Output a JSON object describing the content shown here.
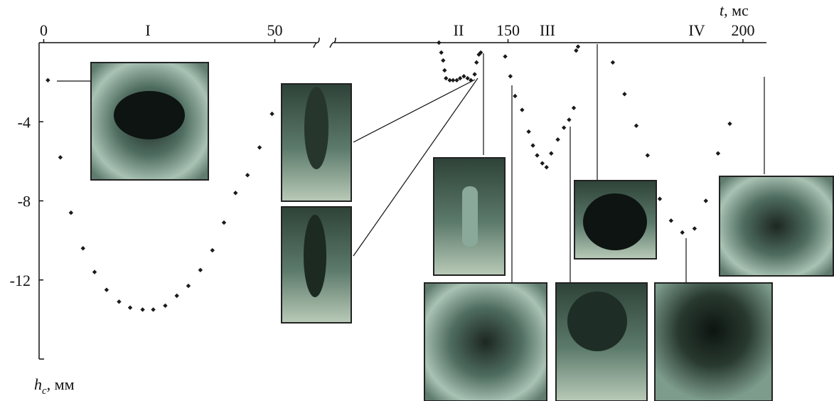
{
  "chart_data": {
    "type": "scatter",
    "x_label": {
      "symbol": "t",
      "unit": ", мс"
    },
    "y_label": {
      "symbol": "h",
      "subscript": "c",
      "unit": ", мм"
    },
    "phase_labels": [
      "I",
      "II",
      "III",
      "IV"
    ],
    "xlim": [
      -1,
      205
    ],
    "x_break": [
      59,
      113
    ],
    "xticks": [
      0,
      50,
      150,
      200
    ],
    "ylim": [
      -16,
      0
    ],
    "yticks": [
      -12,
      -8,
      -4
    ],
    "color": "#1a1a1a",
    "x": [
      0.9,
      3.6,
      5.9,
      8.5,
      11,
      13.6,
      16.3,
      18.7,
      21.4,
      23.7,
      26.3,
      28.8,
      31.3,
      33.9,
      36.5,
      39,
      41.5,
      44.1,
      46.7,
      49.4,
      135.3,
      135.8,
      136.2,
      136.5,
      136.8,
      137.6,
      138.3,
      139.1,
      139.8,
      140.6,
      141.4,
      142.1,
      142.9,
      143.3,
      143.8,
      144.2,
      149.4,
      150.5,
      151.5,
      153,
      154.4,
      155.3,
      156.2,
      157.3,
      158.2,
      159.2,
      160.6,
      161.9,
      163,
      164,
      164.5,
      164.9,
      172.3,
      174.8,
      177.3,
      179.7,
      182.3,
      184.7,
      187.1,
      189.7,
      192.1,
      194.7,
      197.2
    ],
    "values": [
      -1.9,
      -5.8,
      -8.6,
      -10.4,
      -11.6,
      -12.5,
      -13.1,
      -13.4,
      -13.5,
      -13.5,
      -13.3,
      -12.8,
      -12.3,
      -11.5,
      -10.5,
      -9.1,
      -7.6,
      -6.7,
      -5.3,
      -3.6,
      0,
      -0.5,
      -0.9,
      -1.4,
      -1.8,
      -1.9,
      -1.9,
      -1.9,
      -1.8,
      -1.7,
      -1.8,
      -1.9,
      -1.6,
      -1.0,
      -0.6,
      -0.5,
      -0.7,
      -1.7,
      -2.7,
      -3.4,
      -4.5,
      -5.2,
      -5.7,
      -6.1,
      -6.3,
      -5.6,
      -4.9,
      -4.3,
      -3.9,
      -3.3,
      -0.4,
      -0.2,
      -1.0,
      -2.6,
      -4.2,
      -5.7,
      -7.9,
      -9.0,
      -9.6,
      -9.4,
      -8.0,
      -5.6,
      -4.1
    ]
  }
}
